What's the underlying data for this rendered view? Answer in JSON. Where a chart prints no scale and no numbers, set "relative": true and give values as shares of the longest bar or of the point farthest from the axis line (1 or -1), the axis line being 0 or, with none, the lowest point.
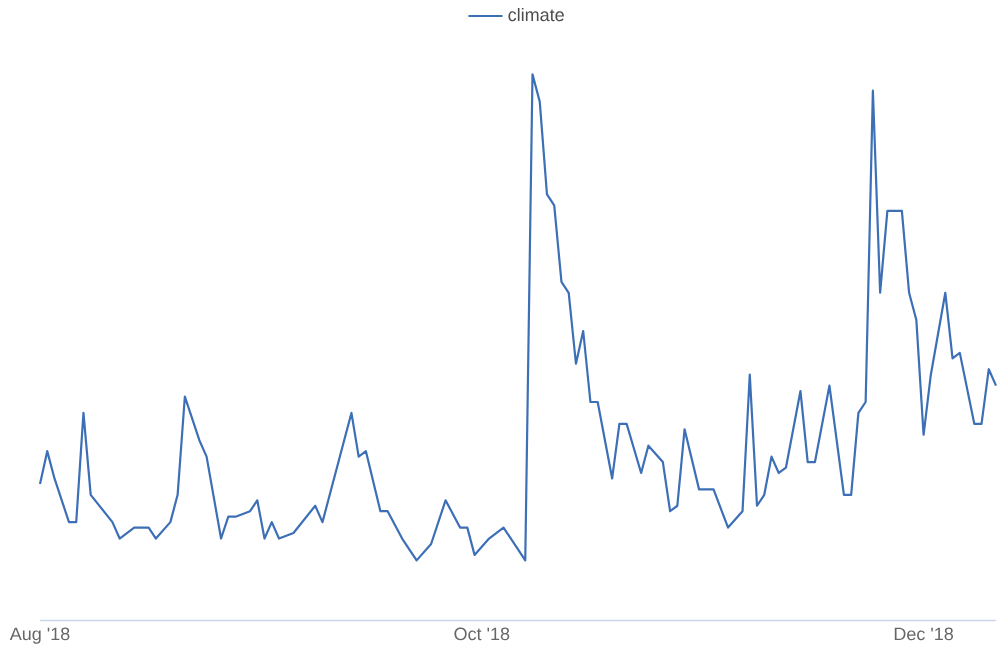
{
  "chart_data": {
    "type": "line",
    "relative": true,
    "legend": "top",
    "grid": false,
    "marker": "none",
    "line_style": "solid",
    "xlim": [
      "2018-08-01",
      "2018-12-11"
    ],
    "xticks": [
      {
        "value": "2018-08-01",
        "label": "Aug '18"
      },
      {
        "value": "2018-10-01",
        "label": "Oct '18"
      },
      {
        "value": "2018-12-01",
        "label": "Dec '18"
      }
    ],
    "x": [
      "2018-08-01",
      "2018-08-02",
      "2018-08-03",
      "2018-08-05",
      "2018-08-06",
      "2018-08-07",
      "2018-08-08",
      "2018-08-11",
      "2018-08-12",
      "2018-08-14",
      "2018-08-16",
      "2018-08-17",
      "2018-08-19",
      "2018-08-20",
      "2018-08-21",
      "2018-08-23",
      "2018-08-24",
      "2018-08-26",
      "2018-08-27",
      "2018-08-28",
      "2018-08-30",
      "2018-08-31",
      "2018-09-01",
      "2018-09-02",
      "2018-09-03",
      "2018-09-05",
      "2018-09-08",
      "2018-09-09",
      "2018-09-12",
      "2018-09-13",
      "2018-09-14",
      "2018-09-15",
      "2018-09-17",
      "2018-09-18",
      "2018-09-20",
      "2018-09-22",
      "2018-09-24",
      "2018-09-26",
      "2018-09-28",
      "2018-09-29",
      "2018-09-30",
      "2018-10-02",
      "2018-10-04",
      "2018-10-06",
      "2018-10-07",
      "2018-10-08",
      "2018-10-09",
      "2018-10-10",
      "2018-10-11",
      "2018-10-12",
      "2018-10-13",
      "2018-10-14",
      "2018-10-15",
      "2018-10-16",
      "2018-10-17",
      "2018-10-19",
      "2018-10-20",
      "2018-10-21",
      "2018-10-23",
      "2018-10-24",
      "2018-10-26",
      "2018-10-27",
      "2018-10-28",
      "2018-10-29",
      "2018-10-31",
      "2018-11-02",
      "2018-11-04",
      "2018-11-06",
      "2018-11-07",
      "2018-11-08",
      "2018-11-09",
      "2018-11-10",
      "2018-11-11",
      "2018-11-12",
      "2018-11-14",
      "2018-11-15",
      "2018-11-16",
      "2018-11-18",
      "2018-11-20",
      "2018-11-21",
      "2018-11-22",
      "2018-11-23",
      "2018-11-24",
      "2018-11-25",
      "2018-11-26",
      "2018-11-28",
      "2018-11-29",
      "2018-11-30",
      "2018-12-01",
      "2018-12-02",
      "2018-12-04",
      "2018-12-05",
      "2018-12-06",
      "2018-12-08",
      "2018-12-09",
      "2018-12-10",
      "2018-12-11"
    ],
    "series": [
      {
        "name": "climate",
        "color": "#3d6fb6",
        "values": [
          0.25,
          0.31,
          0.26,
          0.18,
          0.18,
          0.38,
          0.23,
          0.18,
          0.15,
          0.17,
          0.17,
          0.15,
          0.18,
          0.23,
          0.41,
          0.33,
          0.3,
          0.15,
          0.19,
          0.19,
          0.2,
          0.22,
          0.15,
          0.18,
          0.15,
          0.16,
          0.21,
          0.18,
          0.33,
          0.38,
          0.3,
          0.31,
          0.2,
          0.2,
          0.15,
          0.11,
          0.14,
          0.22,
          0.17,
          0.17,
          0.12,
          0.15,
          0.17,
          0.13,
          0.11,
          1.0,
          0.95,
          0.78,
          0.76,
          0.62,
          0.6,
          0.47,
          0.53,
          0.4,
          0.4,
          0.26,
          0.36,
          0.36,
          0.27,
          0.32,
          0.29,
          0.2,
          0.21,
          0.35,
          0.24,
          0.24,
          0.17,
          0.2,
          0.45,
          0.21,
          0.23,
          0.3,
          0.27,
          0.28,
          0.42,
          0.29,
          0.29,
          0.43,
          0.23,
          0.23,
          0.38,
          0.4,
          0.97,
          0.6,
          0.75,
          0.75,
          0.6,
          0.55,
          0.34,
          0.45,
          0.6,
          0.48,
          0.49,
          0.36,
          0.36,
          0.46,
          0.43
        ]
      }
    ]
  }
}
